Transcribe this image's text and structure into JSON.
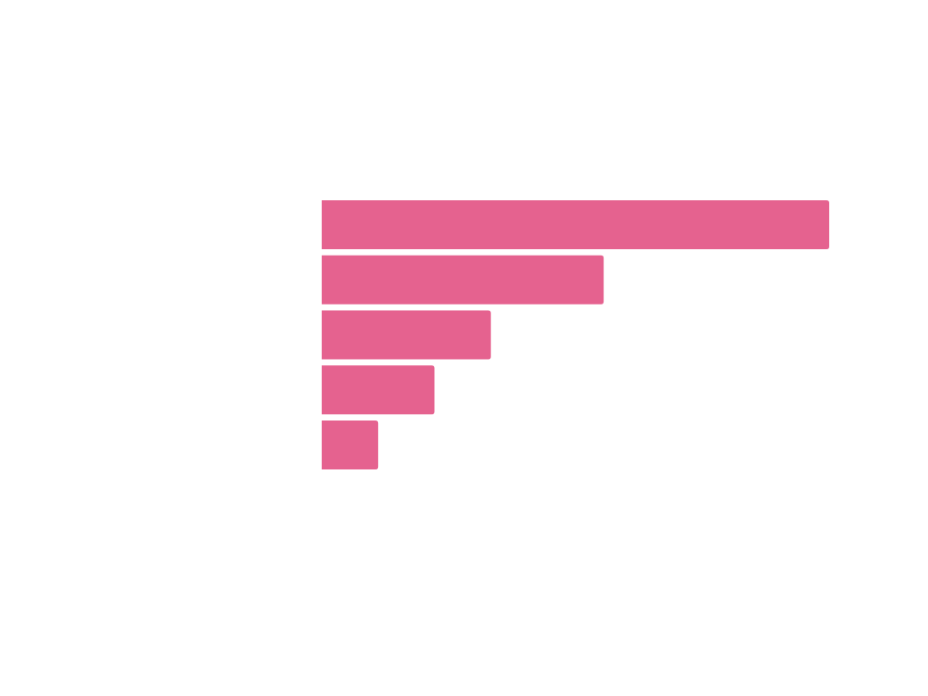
{
  "chart_data": {
    "type": "bar",
    "orientation": "horizontal",
    "categories": [
      "",
      "",
      "",
      "",
      ""
    ],
    "values": [
      9,
      5,
      3,
      2,
      1
    ],
    "xlim": [
      0,
      9
    ],
    "grid": false,
    "legend": "none",
    "colors": {
      "bar": "#e5628f",
      "background": "#ffffff"
    }
  }
}
